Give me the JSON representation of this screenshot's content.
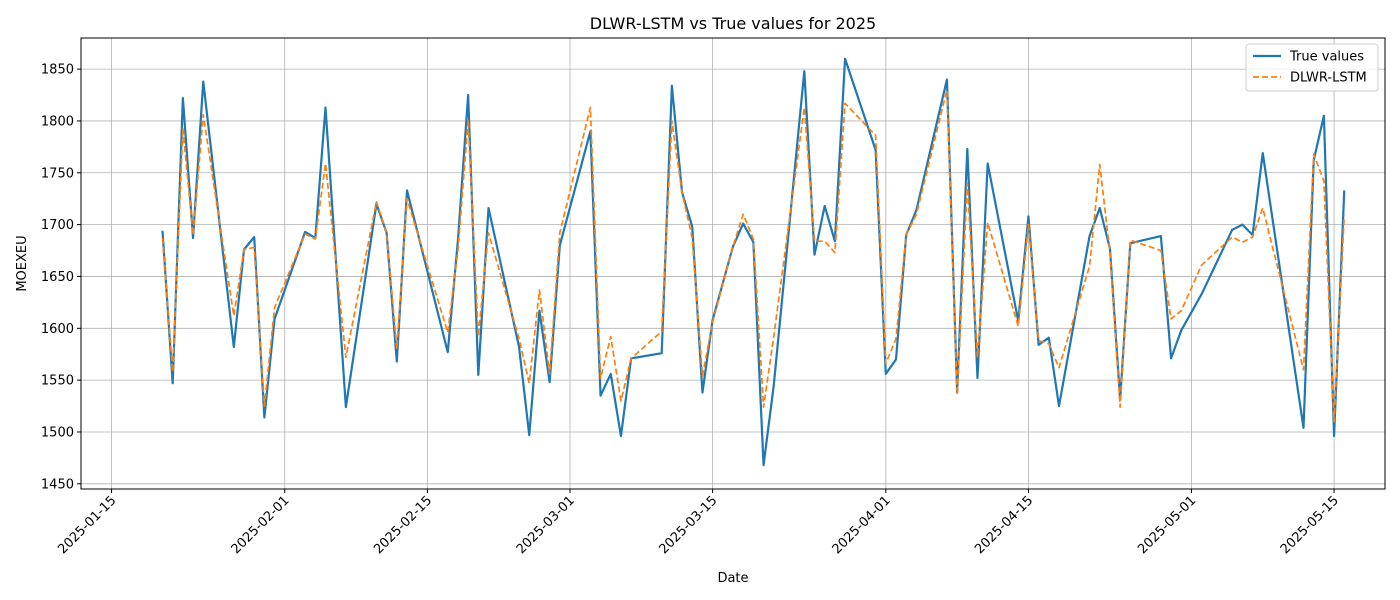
{
  "chart_data": {
    "type": "line",
    "title": "DLWR-LSTM vs True values for 2025",
    "xlabel": "Date",
    "ylabel": "MOEXEU",
    "xlim": [
      "2025-01-12",
      "2025-05-20"
    ],
    "ylim": [
      1445,
      1880
    ],
    "x_ticks": [
      "2025-01-15",
      "2025-02-01",
      "2025-02-15",
      "2025-03-01",
      "2025-03-15",
      "2025-04-01",
      "2025-04-15",
      "2025-05-01",
      "2025-05-15"
    ],
    "y_ticks": [
      1450,
      1500,
      1550,
      1600,
      1650,
      1700,
      1750,
      1800,
      1850
    ],
    "grid": true,
    "legend_position": "top-right",
    "series": [
      {
        "name": "True values",
        "color": "#1f77b4",
        "style": "solid",
        "points": [
          [
            "2025-01-20",
            1694
          ],
          [
            "2025-01-21",
            1547
          ],
          [
            "2025-01-22",
            1822
          ],
          [
            "2025-01-23",
            1687
          ],
          [
            "2025-01-24",
            1838
          ],
          [
            "2025-01-27",
            1582
          ],
          [
            "2025-01-28",
            1676
          ],
          [
            "2025-01-29",
            1688
          ],
          [
            "2025-01-30",
            1514
          ],
          [
            "2025-01-31",
            1609
          ],
          [
            "2025-02-03",
            1693
          ],
          [
            "2025-02-04",
            1687
          ],
          [
            "2025-02-05",
            1813
          ],
          [
            "2025-02-07",
            1524
          ],
          [
            "2025-02-10",
            1720
          ],
          [
            "2025-02-11",
            1692
          ],
          [
            "2025-02-12",
            1568
          ],
          [
            "2025-02-13",
            1733
          ],
          [
            "2025-02-17",
            1577
          ],
          [
            "2025-02-18",
            1685
          ],
          [
            "2025-02-19",
            1825
          ],
          [
            "2025-02-20",
            1555
          ],
          [
            "2025-02-21",
            1716
          ],
          [
            "2025-02-24",
            1582
          ],
          [
            "2025-02-25",
            1497
          ],
          [
            "2025-02-26",
            1617
          ],
          [
            "2025-02-27",
            1548
          ],
          [
            "2025-02-28",
            1680
          ],
          [
            "2025-03-03",
            1790
          ],
          [
            "2025-03-04",
            1535
          ],
          [
            "2025-03-05",
            1556
          ],
          [
            "2025-03-06",
            1496
          ],
          [
            "2025-03-07",
            1571
          ],
          [
            "2025-03-10",
            1576
          ],
          [
            "2025-03-11",
            1834
          ],
          [
            "2025-03-12",
            1731
          ],
          [
            "2025-03-13",
            1698
          ],
          [
            "2025-03-14",
            1538
          ],
          [
            "2025-03-15",
            1608
          ],
          [
            "2025-03-17",
            1679
          ],
          [
            "2025-03-18",
            1701
          ],
          [
            "2025-03-19",
            1683
          ],
          [
            "2025-03-20",
            1468
          ],
          [
            "2025-03-21",
            1545
          ],
          [
            "2025-03-24",
            1848
          ],
          [
            "2025-03-25",
            1671
          ],
          [
            "2025-03-26",
            1718
          ],
          [
            "2025-03-27",
            1684
          ],
          [
            "2025-03-28",
            1860
          ],
          [
            "2025-03-31",
            1772
          ],
          [
            "2025-04-01",
            1556
          ],
          [
            "2025-04-02",
            1570
          ],
          [
            "2025-04-03",
            1690
          ],
          [
            "2025-04-04",
            1714
          ],
          [
            "2025-04-07",
            1840
          ],
          [
            "2025-04-08",
            1538
          ],
          [
            "2025-04-09",
            1773
          ],
          [
            "2025-04-10",
            1552
          ],
          [
            "2025-04-11",
            1759
          ],
          [
            "2025-04-14",
            1607
          ],
          [
            "2025-04-15",
            1708
          ],
          [
            "2025-04-16",
            1584
          ],
          [
            "2025-04-17",
            1591
          ],
          [
            "2025-04-18",
            1525
          ],
          [
            "2025-04-21",
            1689
          ],
          [
            "2025-04-22",
            1716
          ],
          [
            "2025-04-23",
            1677
          ],
          [
            "2025-04-24",
            1531
          ],
          [
            "2025-04-25",
            1682
          ],
          [
            "2025-04-28",
            1689
          ],
          [
            "2025-04-29",
            1571
          ],
          [
            "2025-04-30",
            1598
          ],
          [
            "2025-05-02",
            1633
          ],
          [
            "2025-05-05",
            1695
          ],
          [
            "2025-05-06",
            1700
          ],
          [
            "2025-05-07",
            1690
          ],
          [
            "2025-05-08",
            1769
          ],
          [
            "2025-05-12",
            1504
          ],
          [
            "2025-05-13",
            1762
          ],
          [
            "2025-05-14",
            1805
          ],
          [
            "2025-05-15",
            1496
          ],
          [
            "2025-05-16",
            1733
          ]
        ]
      },
      {
        "name": "DLWR-LSTM",
        "color": "#ff7f0e",
        "style": "dashed",
        "points": [
          [
            "2025-01-20",
            1687
          ],
          [
            "2025-01-21",
            1558
          ],
          [
            "2025-01-22",
            1793
          ],
          [
            "2025-01-23",
            1690
          ],
          [
            "2025-01-24",
            1806
          ],
          [
            "2025-01-27",
            1612
          ],
          [
            "2025-01-28",
            1676
          ],
          [
            "2025-01-29",
            1678
          ],
          [
            "2025-01-30",
            1525
          ],
          [
            "2025-01-31",
            1620
          ],
          [
            "2025-02-03",
            1691
          ],
          [
            "2025-02-04",
            1686
          ],
          [
            "2025-02-05",
            1759
          ],
          [
            "2025-02-07",
            1572
          ],
          [
            "2025-02-10",
            1722
          ],
          [
            "2025-02-11",
            1692
          ],
          [
            "2025-02-12",
            1580
          ],
          [
            "2025-02-13",
            1725
          ],
          [
            "2025-02-17",
            1596
          ],
          [
            "2025-02-18",
            1675
          ],
          [
            "2025-02-19",
            1801
          ],
          [
            "2025-02-20",
            1592
          ],
          [
            "2025-02-21",
            1692
          ],
          [
            "2025-02-24",
            1590
          ],
          [
            "2025-02-25",
            1547
          ],
          [
            "2025-02-26",
            1637
          ],
          [
            "2025-02-27",
            1556
          ],
          [
            "2025-02-28",
            1692
          ],
          [
            "2025-03-03",
            1813
          ],
          [
            "2025-03-04",
            1552
          ],
          [
            "2025-03-05",
            1592
          ],
          [
            "2025-03-06",
            1530
          ],
          [
            "2025-03-07",
            1571
          ],
          [
            "2025-03-10",
            1597
          ],
          [
            "2025-03-11",
            1800
          ],
          [
            "2025-03-12",
            1731
          ],
          [
            "2025-03-13",
            1687
          ],
          [
            "2025-03-14",
            1554
          ],
          [
            "2025-03-15",
            1606
          ],
          [
            "2025-03-17",
            1679
          ],
          [
            "2025-03-18",
            1710
          ],
          [
            "2025-03-19",
            1686
          ],
          [
            "2025-03-20",
            1524
          ],
          [
            "2025-03-21",
            1592
          ],
          [
            "2025-03-24",
            1813
          ],
          [
            "2025-03-25",
            1684
          ],
          [
            "2025-03-26",
            1684
          ],
          [
            "2025-03-27",
            1673
          ],
          [
            "2025-03-28",
            1817
          ],
          [
            "2025-03-31",
            1786
          ],
          [
            "2025-04-01",
            1566
          ],
          [
            "2025-04-02",
            1590
          ],
          [
            "2025-04-03",
            1690
          ],
          [
            "2025-04-04",
            1710
          ],
          [
            "2025-04-07",
            1830
          ],
          [
            "2025-04-08",
            1536
          ],
          [
            "2025-04-09",
            1740
          ],
          [
            "2025-04-10",
            1572
          ],
          [
            "2025-04-11",
            1702
          ],
          [
            "2025-04-14",
            1602
          ],
          [
            "2025-04-15",
            1700
          ],
          [
            "2025-04-16",
            1588
          ],
          [
            "2025-04-17",
            1585
          ],
          [
            "2025-04-18",
            1562
          ],
          [
            "2025-04-21",
            1660
          ],
          [
            "2025-04-22",
            1758
          ],
          [
            "2025-04-23",
            1673
          ],
          [
            "2025-04-24",
            1524
          ],
          [
            "2025-04-25",
            1685
          ],
          [
            "2025-04-28",
            1675
          ],
          [
            "2025-04-29",
            1609
          ],
          [
            "2025-04-30",
            1617
          ],
          [
            "2025-05-02",
            1661
          ],
          [
            "2025-05-05",
            1688
          ],
          [
            "2025-05-06",
            1683
          ],
          [
            "2025-05-07",
            1688
          ],
          [
            "2025-05-08",
            1716
          ],
          [
            "2025-05-12",
            1560
          ],
          [
            "2025-05-13",
            1768
          ],
          [
            "2025-05-14",
            1742
          ],
          [
            "2025-05-15",
            1510
          ],
          [
            "2025-05-16",
            1709
          ]
        ]
      }
    ]
  }
}
